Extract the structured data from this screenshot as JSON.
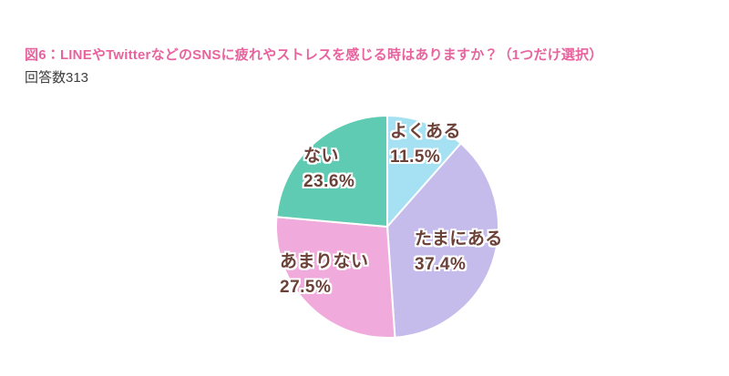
{
  "header": {
    "title": "図6：LINEやTwitterなどのSNSに疲れやストレスを感じる時はありますか？（1つだけ選択）",
    "response_count_label": "回答数313",
    "response_count": 313
  },
  "colors": {
    "title": "#e8639e",
    "body_text": "#3f3f3f",
    "label_text": "#6b4138",
    "slice_border": "#ffffff",
    "background": "#ffffff"
  },
  "chart_data": {
    "type": "pie",
    "title": "図6：LINEやTwitterなどのSNSに疲れやストレスを感じる時はありますか？（1つだけ選択）",
    "subtitle": "回答数313",
    "total_responses": 313,
    "start_angle_deg": 0,
    "direction": "clockwise",
    "legend_position": "labels-on-chart",
    "segments": [
      {
        "id": "yokuaru",
        "label": "よくある",
        "value": 11.5,
        "pct_label": "11.5%",
        "color": "#a5e1f2"
      },
      {
        "id": "tamaniaru",
        "label": "たまにある",
        "value": 37.4,
        "pct_label": "37.4%",
        "color": "#c6bceb"
      },
      {
        "id": "amarinai",
        "label": "あまりない",
        "value": 27.5,
        "pct_label": "27.5%",
        "color": "#f0abdc"
      },
      {
        "id": "nai",
        "label": "ない",
        "value": 23.6,
        "pct_label": "23.6%",
        "color": "#5fcbb2"
      }
    ]
  }
}
